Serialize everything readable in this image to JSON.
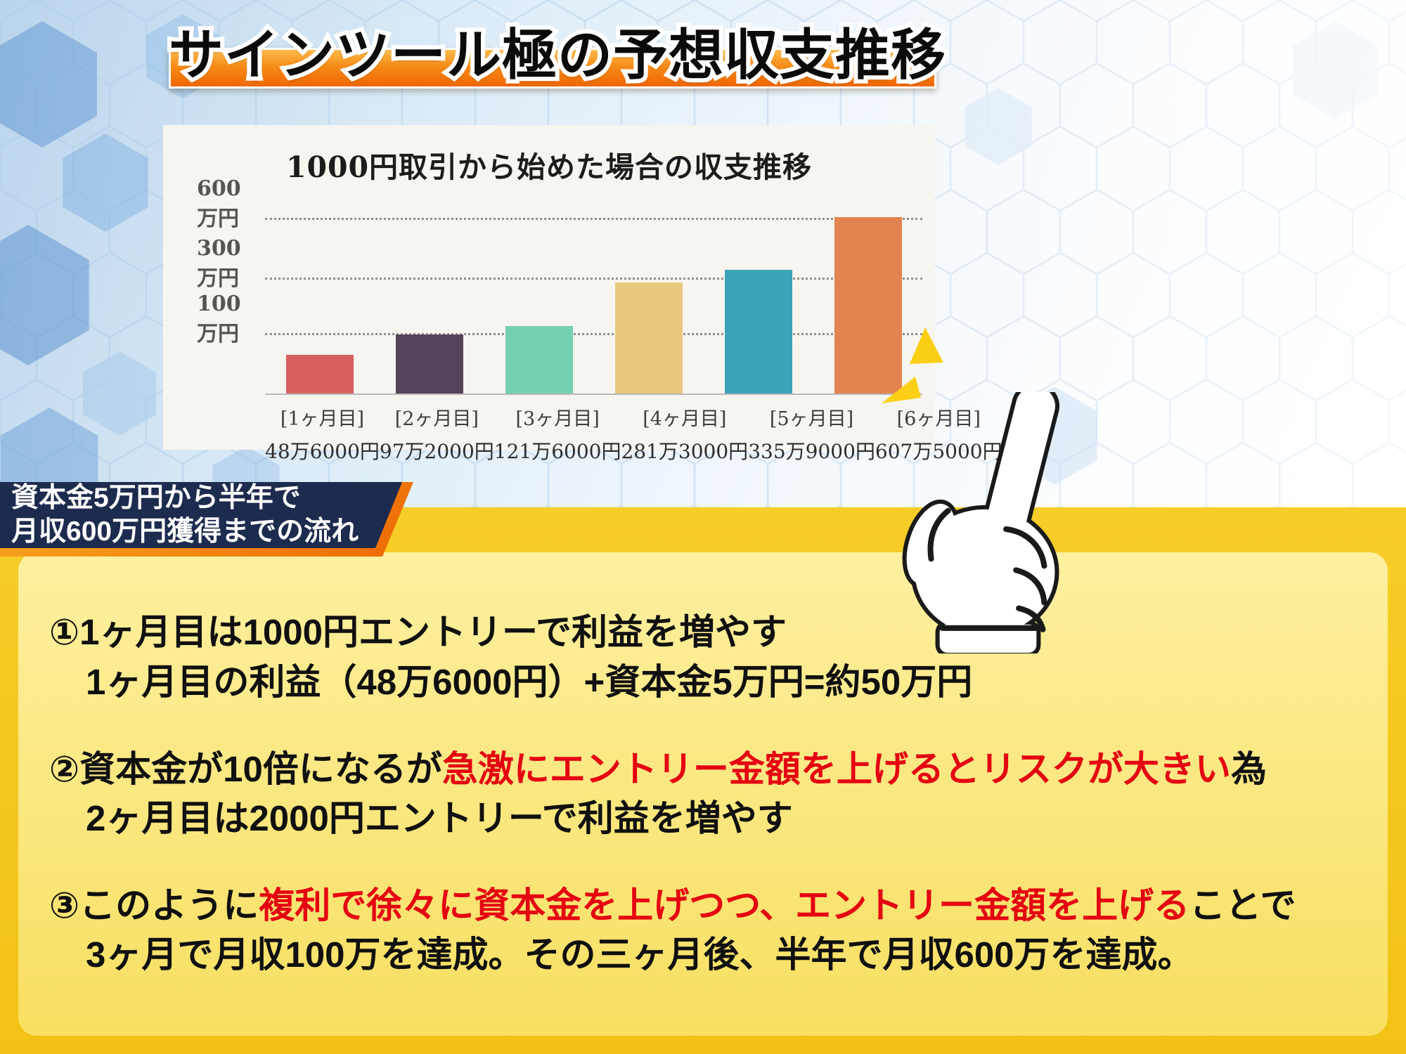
{
  "page": {
    "title": "サインツール極の予想収支推移"
  },
  "chart_data": {
    "type": "bar",
    "title": "1000円取引から始めた場合の収支推移",
    "categories": [
      "[1ヶ月目]",
      "[2ヶ月目]",
      "[3ヶ月目]",
      "[4ヶ月目]",
      "[5ヶ月目]",
      "[6ヶ月目]"
    ],
    "values": [
      486000,
      972000,
      1216000,
      2813000,
      3359000,
      6075000
    ],
    "value_labels": [
      "48万6000円",
      "97万2000円",
      "121万6000円",
      "281万3000円",
      "335万9000円",
      "607万5000円"
    ],
    "bar_colors": [
      "#d85f5f",
      "#554459",
      "#74cfb0",
      "#e9c87e",
      "#3aa3b8",
      "#e28350"
    ],
    "y_ticks": [
      {
        "label": "600万円",
        "value": 6000000
      },
      {
        "label": "300万円",
        "value": 3000000
      },
      {
        "label": "100万円",
        "value": 1000000
      }
    ],
    "ylim": [
      0,
      6500000
    ],
    "unit": "円",
    "grid": "dotted horizontal",
    "legend": "none"
  },
  "flow_badge": {
    "line1": "資本金5万円から半年で",
    "line2": "月収600万円獲得までの流れ"
  },
  "notes": [
    {
      "line1_pre": "①1ヶ月目は1000円エントリーで利益を増やす",
      "line1_red": "",
      "line1_post": "",
      "line2": "1ヶ月目の利益（48万6000円）+資本金5万円=約50万円"
    },
    {
      "line1_pre": "②資本金が10倍になるが",
      "line1_red": "急激にエントリー金額を上げるとリスクが大きい",
      "line1_post": "為",
      "line2": "2ヶ月目は2000円エントリーで利益を増やす"
    },
    {
      "line1_pre": "③このように",
      "line1_red": "複利で徐々に資本金を上げつつ、エントリー金額を上げる",
      "line1_post": "ことで",
      "line2": "3ヶ月で月収100万を達成。その三ヶ月後、半年で月収600万を達成。"
    }
  ],
  "colors": {
    "title_bar_orange": "#ee6703",
    "badge_navy": "#1d2b4e",
    "badge_border_orange": "#ed6a02",
    "highlight_red": "#e50011",
    "bottom_gold": "#f2c115",
    "notes_panel_yellow": "#f8df61",
    "background_blue": "#b9d4ec"
  },
  "icons": {
    "pointing_hand": "white glove hand pointing up-right",
    "emphasis_sparks": "yellow emphasis wedges near fingertip"
  }
}
